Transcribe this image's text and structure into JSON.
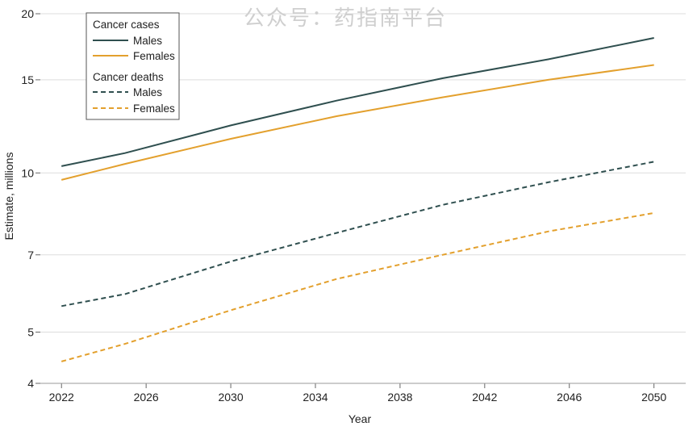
{
  "watermark": "公众号：药指南平台",
  "chart_data": {
    "type": "line",
    "xlabel": "Year",
    "ylabel": "Estimate, millions",
    "yscale": "log",
    "xlim": [
      2021,
      2051.5
    ],
    "ylim": [
      4,
      20.5
    ],
    "x_ticks": [
      2022,
      2026,
      2030,
      2034,
      2038,
      2042,
      2046,
      2050
    ],
    "y_ticks": [
      4,
      5,
      7,
      10,
      15,
      20
    ],
    "grid": "horizontal",
    "legend": {
      "placement": "top-left",
      "groups": [
        {
          "title": "Cancer cases",
          "entries": [
            "Males",
            "Females"
          ]
        },
        {
          "title": "Cancer deaths",
          "entries": [
            "Males",
            "Females"
          ]
        }
      ]
    },
    "series": [
      {
        "group": "Cancer cases",
        "name": "Males",
        "color": "#2f4f4f",
        "style": "solid",
        "x": [
          2022,
          2025,
          2030,
          2035,
          2040,
          2045,
          2050
        ],
        "y": [
          10.3,
          10.9,
          12.3,
          13.7,
          15.1,
          16.4,
          18.0
        ]
      },
      {
        "group": "Cancer cases",
        "name": "Females",
        "color": "#e3a02d",
        "style": "solid",
        "x": [
          2022,
          2025,
          2030,
          2035,
          2040,
          2045,
          2050
        ],
        "y": [
          9.7,
          10.4,
          11.6,
          12.8,
          13.9,
          15.0,
          16.0
        ]
      },
      {
        "group": "Cancer deaths",
        "name": "Males",
        "color": "#2f4f4f",
        "style": "dashed",
        "x": [
          2022,
          2025,
          2030,
          2035,
          2040,
          2045,
          2050
        ],
        "y": [
          5.6,
          5.9,
          6.8,
          7.7,
          8.7,
          9.6,
          10.5
        ]
      },
      {
        "group": "Cancer deaths",
        "name": "Females",
        "color": "#e3a02d",
        "style": "dashed",
        "x": [
          2022,
          2025,
          2030,
          2035,
          2040,
          2045,
          2050
        ],
        "y": [
          4.4,
          4.75,
          5.5,
          6.3,
          7.0,
          7.75,
          8.4
        ]
      }
    ]
  }
}
